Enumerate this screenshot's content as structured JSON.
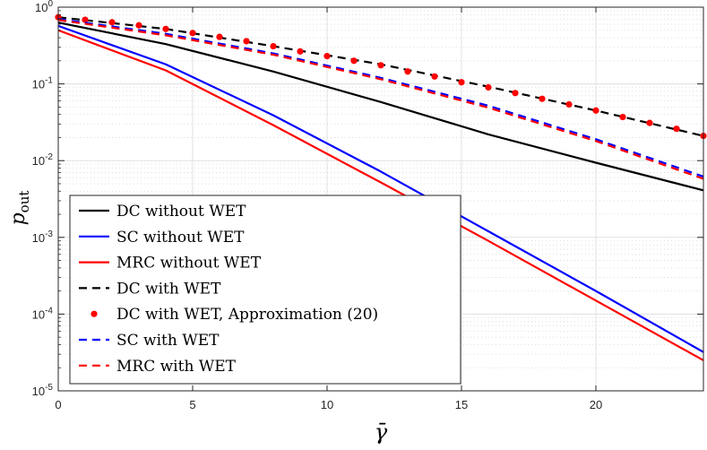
{
  "chart_data": {
    "type": "line",
    "y_scale": "log",
    "xlabel": "γ̄",
    "ylabel_main": "p",
    "ylabel_sub": "out",
    "xlim": [
      0,
      24
    ],
    "ylim": [
      1e-05,
      1
    ],
    "x_ticks": [
      0,
      5,
      10,
      15,
      20
    ],
    "x_tick_labels": [
      "0",
      "5",
      "10",
      "15",
      "20"
    ],
    "y_ticks": [
      {
        "value": 1,
        "base": "10",
        "exp": "0"
      },
      {
        "value": 0.1,
        "base": "10",
        "exp": "-1"
      },
      {
        "value": 0.01,
        "base": "10",
        "exp": "-2"
      },
      {
        "value": 0.001,
        "base": "10",
        "exp": "-3"
      },
      {
        "value": 0.0001,
        "base": "10",
        "exp": "-4"
      },
      {
        "value": 1e-05,
        "base": "10",
        "exp": "-5"
      }
    ],
    "grid": true,
    "legend_position": "bottom-left",
    "series": [
      {
        "name": "DC without WET",
        "color": "#000000",
        "style": "solid",
        "x": [
          0,
          4,
          8,
          12,
          16,
          20,
          24
        ],
        "y": [
          0.63,
          0.33,
          0.145,
          0.058,
          0.022,
          0.0094,
          0.0041
        ]
      },
      {
        "name": "SC without WET",
        "color": "#0000ff",
        "style": "solid",
        "x": [
          0,
          4,
          8,
          12,
          16,
          20,
          24
        ],
        "y": [
          0.57,
          0.18,
          0.039,
          0.0072,
          0.0012,
          0.0002,
          3.2e-05
        ]
      },
      {
        "name": "MRC without WET",
        "color": "#ff0000",
        "style": "solid",
        "x": [
          0,
          4,
          8,
          12,
          16,
          20,
          24
        ],
        "y": [
          0.5,
          0.15,
          0.029,
          0.0052,
          0.0009,
          0.00015,
          2.5e-05
        ]
      },
      {
        "name": "DC with WET",
        "color": "#000000",
        "style": "dashed",
        "x": [
          0,
          4,
          8,
          12,
          16,
          20,
          24
        ],
        "y": [
          0.74,
          0.52,
          0.31,
          0.18,
          0.092,
          0.045,
          0.021
        ]
      },
      {
        "name": "DC with WET, Approximation (20)",
        "color": "#ff0000",
        "style": "markers",
        "x": [
          0,
          1,
          2,
          3,
          4,
          5,
          6,
          7,
          8,
          9,
          10,
          11,
          12,
          13,
          14,
          15,
          16,
          17,
          18,
          19,
          20,
          21,
          22,
          23,
          24
        ],
        "y": [
          0.74,
          0.685,
          0.635,
          0.58,
          0.52,
          0.46,
          0.41,
          0.36,
          0.31,
          0.265,
          0.23,
          0.2,
          0.175,
          0.145,
          0.125,
          0.105,
          0.09,
          0.076,
          0.064,
          0.054,
          0.045,
          0.037,
          0.031,
          0.026,
          0.021
        ]
      },
      {
        "name": "SC with WET",
        "color": "#0000ff",
        "style": "dashed",
        "x": [
          0,
          4,
          8,
          12,
          16,
          20,
          24
        ],
        "y": [
          0.7,
          0.45,
          0.25,
          0.12,
          0.052,
          0.019,
          0.0062
        ]
      },
      {
        "name": "MRC with WET",
        "color": "#ff0000",
        "style": "dashed",
        "x": [
          0,
          4,
          8,
          12,
          16,
          20,
          24
        ],
        "y": [
          0.68,
          0.43,
          0.24,
          0.115,
          0.049,
          0.018,
          0.0058
        ]
      }
    ]
  }
}
